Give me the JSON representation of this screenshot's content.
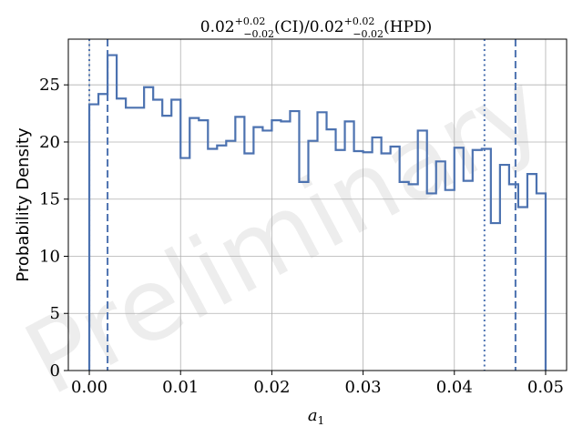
{
  "chart_data": {
    "type": "step-histogram",
    "title": {
      "value": "0.02",
      "ci_sup": "+0.02",
      "ci_sub": "−0.02",
      "ci_label": "(CI)/",
      "hpd_value": "0.02",
      "hpd_sup": "+0.02",
      "hpd_sub": "−0.02",
      "hpd_label": "(HPD)"
    },
    "xlabel": "a",
    "xlabel_sub": "1",
    "ylabel": "Probability Density",
    "xlim": [
      -0.0023,
      0.0523
    ],
    "ylim": [
      0,
      29.0
    ],
    "xticks": [
      0.0,
      0.01,
      0.02,
      0.03,
      0.04,
      0.05
    ],
    "xtick_labels": [
      "0.00",
      "0.01",
      "0.02",
      "0.03",
      "0.04",
      "0.05"
    ],
    "yticks": [
      0,
      5,
      10,
      15,
      20,
      25
    ],
    "ytick_labels": [
      "0",
      "5",
      "10",
      "15",
      "20",
      "25"
    ],
    "grid": true,
    "watermark": "Preliminary",
    "bin_edges": [
      0.0,
      0.001,
      0.002,
      0.003,
      0.004,
      0.005,
      0.006,
      0.007,
      0.008,
      0.009,
      0.01,
      0.011,
      0.012,
      0.013,
      0.014,
      0.015,
      0.016,
      0.017,
      0.018,
      0.019,
      0.02,
      0.021,
      0.022,
      0.023,
      0.024,
      0.025,
      0.026,
      0.027,
      0.028,
      0.029,
      0.03,
      0.031,
      0.032,
      0.033,
      0.034,
      0.035,
      0.036,
      0.037,
      0.038,
      0.039,
      0.04,
      0.041,
      0.042,
      0.043,
      0.044,
      0.045,
      0.046,
      0.047,
      0.048,
      0.049,
      0.05
    ],
    "densities": [
      23.3,
      24.2,
      27.6,
      23.8,
      23.0,
      23.0,
      24.8,
      23.7,
      22.3,
      23.7,
      18.6,
      22.1,
      21.9,
      19.4,
      19.7,
      20.1,
      22.2,
      19.0,
      21.3,
      21.0,
      21.9,
      21.8,
      22.7,
      16.5,
      20.1,
      22.6,
      21.1,
      19.3,
      21.8,
      19.2,
      19.1,
      20.4,
      19.0,
      19.6,
      16.5,
      16.3,
      21.0,
      15.5,
      18.3,
      15.8,
      19.5,
      16.6,
      19.3,
      19.4,
      12.9,
      18.0,
      16.3,
      14.3,
      17.2,
      15.5
    ],
    "series_color": "#4c72b0",
    "ci_lines": [
      0.0,
      0.0433
    ],
    "hpd_lines": [
      0.002,
      0.0467
    ],
    "ci_style": "dotted",
    "hpd_style": "dashed"
  }
}
